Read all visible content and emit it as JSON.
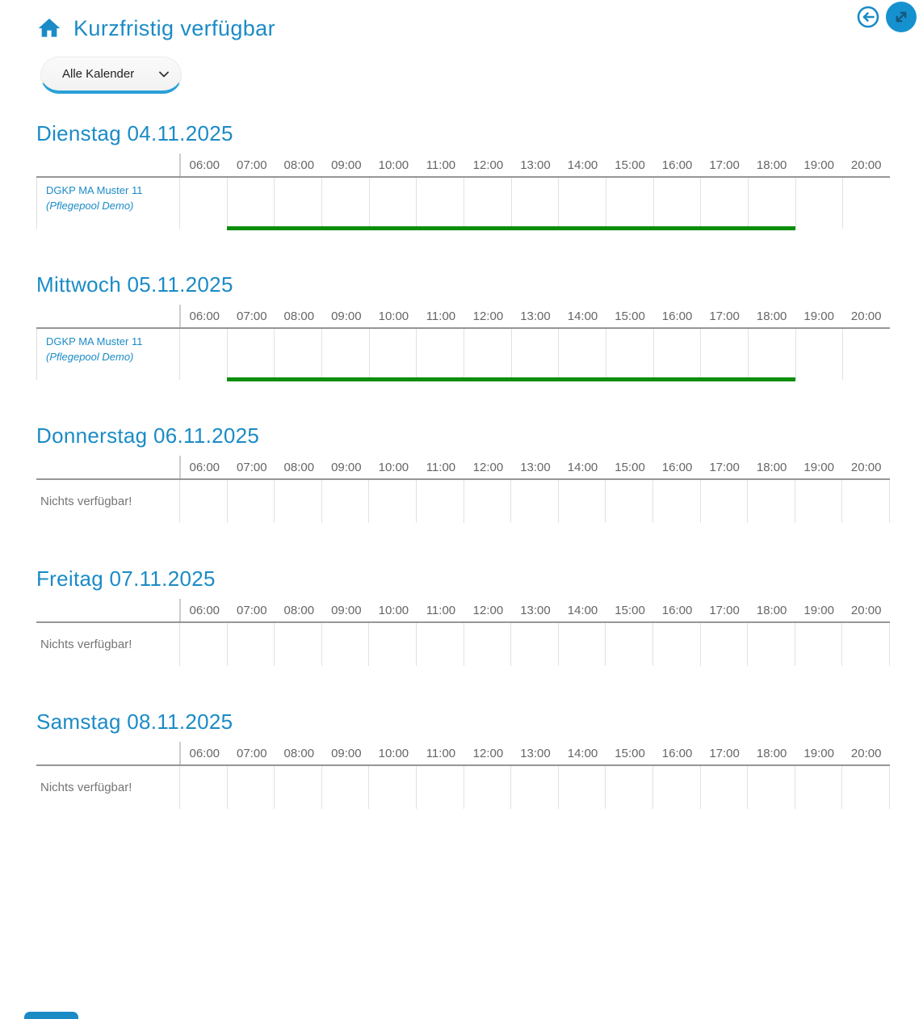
{
  "app": {
    "title": "Kurzfristig verfügbar"
  },
  "filter": {
    "value": "Alle Kalender"
  },
  "timeline_hours": [
    "06:00",
    "07:00",
    "08:00",
    "09:00",
    "10:00",
    "11:00",
    "12:00",
    "13:00",
    "14:00",
    "15:00",
    "16:00",
    "17:00",
    "18:00",
    "19:00",
    "20:00"
  ],
  "days": [
    {
      "title": "Dienstag 04.11.2025",
      "entries": [
        {
          "name": "DGKP MA Muster 11",
          "group": "(Pflegepool Demo)",
          "availability": {
            "from": "07:00",
            "to": "19:00",
            "start_col": 1,
            "span_cols": 12
          }
        }
      ]
    },
    {
      "title": "Mittwoch 05.11.2025",
      "entries": [
        {
          "name": "DGKP MA Muster 11",
          "group": "(Pflegepool Demo)",
          "availability": {
            "from": "07:00",
            "to": "19:00",
            "start_col": 1,
            "span_cols": 12
          }
        }
      ]
    },
    {
      "title": "Donnerstag 06.11.2025",
      "entries": [],
      "empty_label": "Nichts verfügbar!"
    },
    {
      "title": "Freitag 07.11.2025",
      "entries": [],
      "empty_label": "Nichts verfügbar!"
    },
    {
      "title": "Samstag 08.11.2025",
      "entries": [],
      "empty_label": "Nichts verfügbar!"
    }
  ],
  "colors": {
    "accent_blue": "#1b8bc6",
    "available_green": "#0d8e0d",
    "time_text": "#666666",
    "muted_text": "#757575",
    "header_rule": "#969696",
    "grid_line": "#e1e1e1",
    "select_underline": "#2aa0d8"
  }
}
